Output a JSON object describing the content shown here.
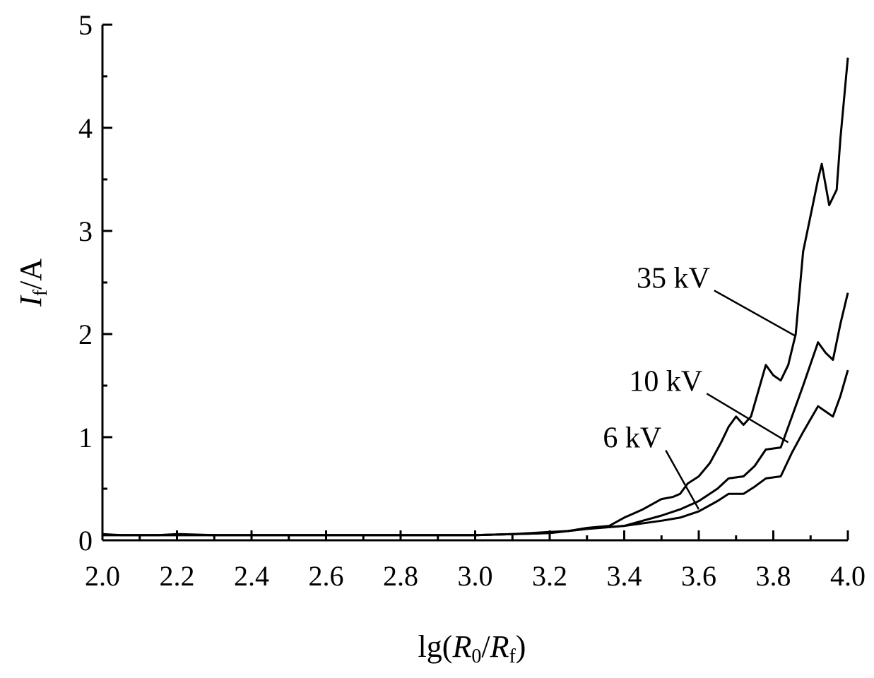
{
  "chart_data": {
    "type": "line",
    "xlabel": {
      "prefix": "lg(",
      "r0": "R",
      "r0_sub": "0",
      "slash": "/",
      "rf": "R",
      "rf_sub": "f",
      "suffix": ")"
    },
    "ylabel": {
      "main": "I",
      "sub": "f",
      "unit": "/A"
    },
    "xlim": [
      2.0,
      4.0
    ],
    "ylim": [
      0,
      5
    ],
    "x_ticks": [
      "2.0",
      "2.2",
      "2.4",
      "2.6",
      "2.8",
      "3.0",
      "3.2",
      "3.4",
      "3.6",
      "3.8",
      "4.0"
    ],
    "y_ticks": [
      "0",
      "1",
      "2",
      "3",
      "4",
      "5"
    ],
    "grid": false,
    "legend": "none",
    "series": [
      {
        "name": "35 kV",
        "label_pos": [
          3.63,
          2.45
        ],
        "label_tip": [
          3.86,
          1.98
        ],
        "points": [
          [
            2.0,
            0.06
          ],
          [
            2.05,
            0.05
          ],
          [
            2.15,
            0.05
          ],
          [
            2.2,
            0.06
          ],
          [
            2.3,
            0.05
          ],
          [
            2.6,
            0.05
          ],
          [
            3.0,
            0.05
          ],
          [
            3.1,
            0.06
          ],
          [
            3.2,
            0.08
          ],
          [
            3.25,
            0.09
          ],
          [
            3.3,
            0.12
          ],
          [
            3.36,
            0.14
          ],
          [
            3.4,
            0.22
          ],
          [
            3.45,
            0.3
          ],
          [
            3.5,
            0.4
          ],
          [
            3.53,
            0.42
          ],
          [
            3.55,
            0.45
          ],
          [
            3.57,
            0.55
          ],
          [
            3.6,
            0.62
          ],
          [
            3.63,
            0.75
          ],
          [
            3.66,
            0.95
          ],
          [
            3.68,
            1.1
          ],
          [
            3.7,
            1.2
          ],
          [
            3.72,
            1.12
          ],
          [
            3.74,
            1.2
          ],
          [
            3.76,
            1.45
          ],
          [
            3.78,
            1.7
          ],
          [
            3.8,
            1.6
          ],
          [
            3.82,
            1.55
          ],
          [
            3.84,
            1.7
          ],
          [
            3.86,
            2.0
          ],
          [
            3.88,
            2.8
          ],
          [
            3.9,
            3.15
          ],
          [
            3.92,
            3.5
          ],
          [
            3.93,
            3.65
          ],
          [
            3.95,
            3.25
          ],
          [
            3.97,
            3.4
          ],
          [
            3.98,
            3.9
          ],
          [
            4.0,
            4.68
          ]
        ]
      },
      {
        "name": "10 kV",
        "label_pos": [
          3.61,
          1.45
        ],
        "label_tip": [
          3.84,
          0.95
        ],
        "points": [
          [
            2.0,
            0.05
          ],
          [
            3.0,
            0.05
          ],
          [
            3.2,
            0.07
          ],
          [
            3.3,
            0.11
          ],
          [
            3.4,
            0.14
          ],
          [
            3.5,
            0.24
          ],
          [
            3.55,
            0.3
          ],
          [
            3.6,
            0.38
          ],
          [
            3.65,
            0.5
          ],
          [
            3.68,
            0.6
          ],
          [
            3.72,
            0.62
          ],
          [
            3.75,
            0.72
          ],
          [
            3.78,
            0.88
          ],
          [
            3.82,
            0.9
          ],
          [
            3.85,
            1.2
          ],
          [
            3.88,
            1.5
          ],
          [
            3.92,
            1.92
          ],
          [
            3.94,
            1.82
          ],
          [
            3.96,
            1.75
          ],
          [
            3.98,
            2.1
          ],
          [
            4.0,
            2.4
          ]
        ]
      },
      {
        "name": "6 kV",
        "label_pos": [
          3.5,
          0.9
        ],
        "label_tip": [
          3.6,
          0.3
        ],
        "points": [
          [
            2.0,
            0.05
          ],
          [
            3.0,
            0.05
          ],
          [
            3.2,
            0.07
          ],
          [
            3.3,
            0.11
          ],
          [
            3.4,
            0.14
          ],
          [
            3.5,
            0.19
          ],
          [
            3.55,
            0.22
          ],
          [
            3.6,
            0.28
          ],
          [
            3.65,
            0.38
          ],
          [
            3.68,
            0.45
          ],
          [
            3.72,
            0.45
          ],
          [
            3.75,
            0.52
          ],
          [
            3.78,
            0.6
          ],
          [
            3.82,
            0.62
          ],
          [
            3.85,
            0.85
          ],
          [
            3.88,
            1.05
          ],
          [
            3.92,
            1.3
          ],
          [
            3.94,
            1.25
          ],
          [
            3.96,
            1.2
          ],
          [
            3.98,
            1.4
          ],
          [
            4.0,
            1.65
          ]
        ]
      }
    ]
  }
}
